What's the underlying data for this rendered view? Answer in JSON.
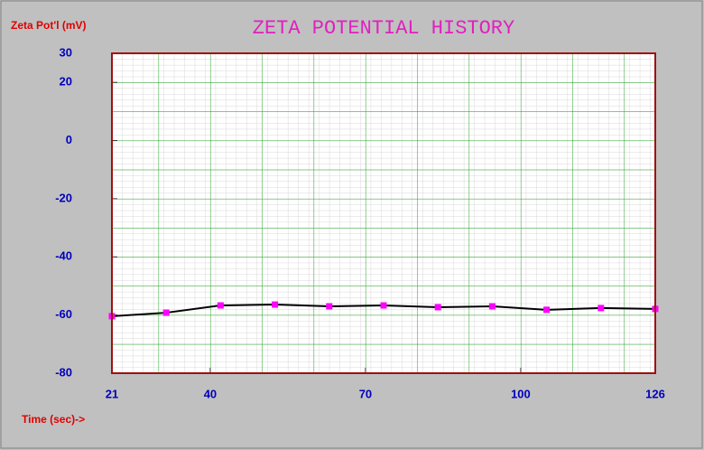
{
  "chart_data": {
    "type": "line",
    "title": "ZETA POTENTIAL HISTORY",
    "y_label": "Zeta Pot'l (mV)",
    "x_label": "Time (sec)->",
    "x": [
      21,
      31.5,
      42,
      52.5,
      63,
      73.5,
      84,
      94.5,
      105,
      115.5,
      126
    ],
    "series": [
      {
        "name": "Zeta potential",
        "color": "#000000",
        "marker_color": "#ff00ff",
        "values": [
          -60.4,
          -59.2,
          -56.7,
          -56.4,
          -57,
          -56.7,
          -57.3,
          -57,
          -58.2,
          -57.6,
          -57.9
        ]
      }
    ],
    "xlim": [
      21,
      126
    ],
    "xticks": [
      21,
      40,
      70,
      100,
      126
    ],
    "ylim": [
      -80,
      30
    ],
    "yticks": [
      30,
      20,
      0,
      -20,
      -40,
      -60,
      -80
    ],
    "grid": true
  }
}
